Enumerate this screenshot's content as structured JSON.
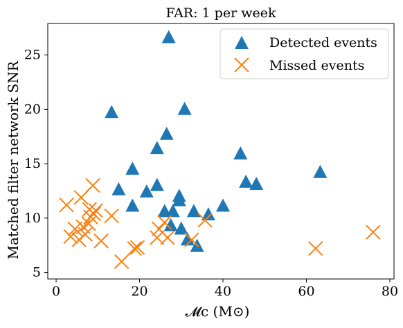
{
  "chart_data": {
    "type": "scatter",
    "title": "FAR: 1 per week",
    "xlabel": "𝓜c (M⊙)",
    "ylabel": "Matched filter network SNR",
    "xlim": [
      -2,
      81
    ],
    "ylim": [
      4.4,
      27.9
    ],
    "xticks": [
      0,
      20,
      40,
      60,
      80
    ],
    "yticks": [
      5,
      10,
      15,
      20,
      25
    ],
    "grid": false,
    "legend_position": "top-right",
    "series": [
      {
        "name": "Detected events",
        "marker": "triangle",
        "color": "#1f77b4",
        "points": [
          [
            13.3,
            19.7
          ],
          [
            15.0,
            12.6
          ],
          [
            18.3,
            14.5
          ],
          [
            18.3,
            11.1
          ],
          [
            21.7,
            12.4
          ],
          [
            24.2,
            13.0
          ],
          [
            24.2,
            16.4
          ],
          [
            26.0,
            10.6
          ],
          [
            26.5,
            17.7
          ],
          [
            27.0,
            26.6
          ],
          [
            27.5,
            9.3
          ],
          [
            28.0,
            10.6
          ],
          [
            29.5,
            12.0
          ],
          [
            29.5,
            11.6
          ],
          [
            30.0,
            9.0
          ],
          [
            30.8,
            20.0
          ],
          [
            31.5,
            8.0
          ],
          [
            33.0,
            10.6
          ],
          [
            33.8,
            7.4
          ],
          [
            36.5,
            10.3
          ],
          [
            40.0,
            11.1
          ],
          [
            44.2,
            15.9
          ],
          [
            45.5,
            13.3
          ],
          [
            48.0,
            13.1
          ],
          [
            63.3,
            14.2
          ]
        ]
      },
      {
        "name": "Missed events",
        "marker": "x",
        "color": "#ff7f0e",
        "points": [
          [
            2.5,
            11.2
          ],
          [
            3.5,
            8.3
          ],
          [
            4.5,
            9.0
          ],
          [
            5.5,
            8.0
          ],
          [
            6.0,
            11.9
          ],
          [
            6.5,
            9.2
          ],
          [
            7.0,
            8.5
          ],
          [
            7.8,
            9.5
          ],
          [
            8.0,
            10.8
          ],
          [
            8.3,
            10.1
          ],
          [
            8.8,
            13.0
          ],
          [
            9.0,
            10.4
          ],
          [
            9.5,
            10.7
          ],
          [
            10.8,
            7.9
          ],
          [
            13.3,
            10.2
          ],
          [
            15.7,
            6.0
          ],
          [
            18.8,
            7.2
          ],
          [
            19.5,
            7.3
          ],
          [
            24.2,
            8.2
          ],
          [
            24.7,
            9.0
          ],
          [
            26.0,
            9.6
          ],
          [
            26.7,
            8.2
          ],
          [
            32.5,
            8.0
          ],
          [
            35.7,
            9.8
          ],
          [
            62.2,
            7.2
          ],
          [
            76.0,
            8.7
          ]
        ]
      }
    ]
  }
}
